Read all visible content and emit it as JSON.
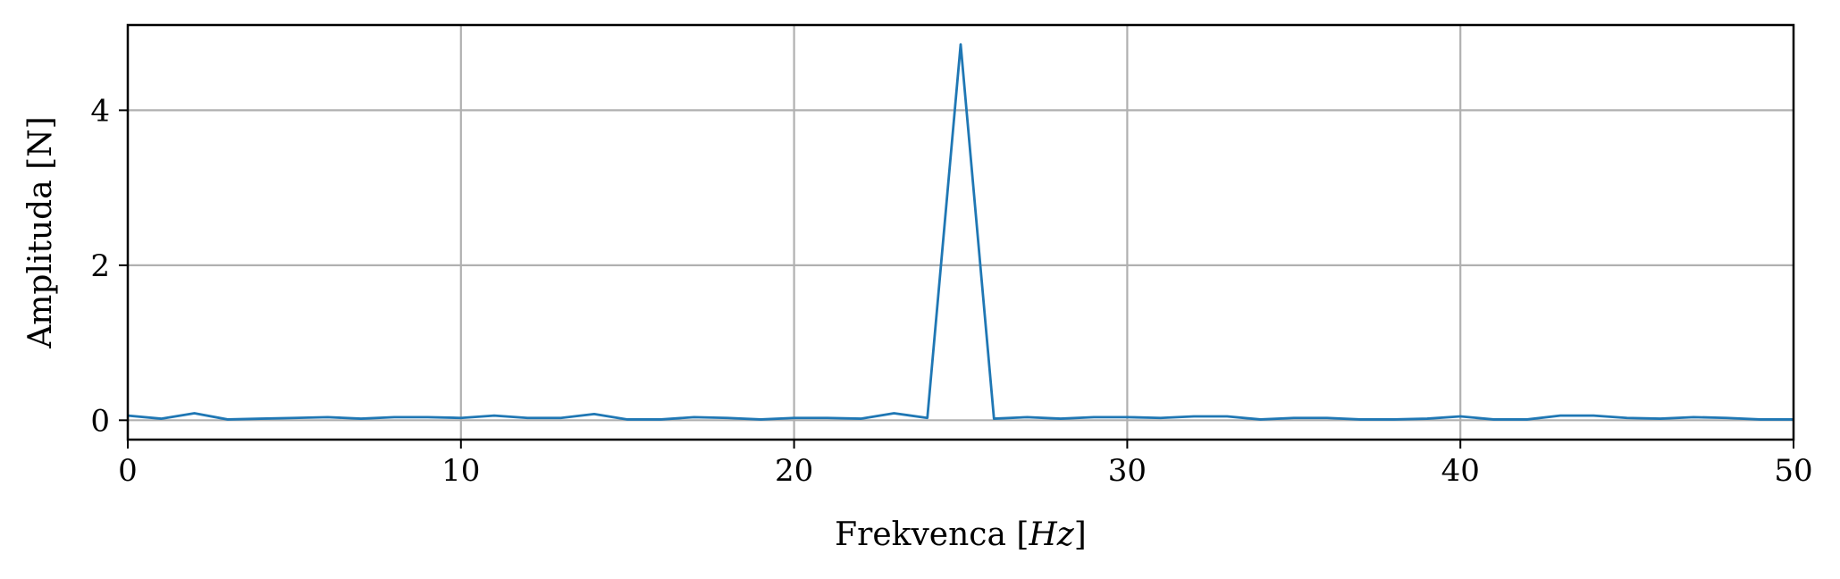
{
  "chart_data": {
    "type": "line",
    "xlabel": "Frekvenca [Hz]",
    "ylabel": "Amplituda [N]",
    "xlim": [
      0,
      50
    ],
    "ylim": [
      -0.25,
      5.1
    ],
    "grid": true,
    "xticks": [
      0,
      10,
      20,
      30,
      40,
      50
    ],
    "yticks": [
      0,
      2,
      4
    ],
    "line_color": "#1f77b4",
    "grid_color": "#b0b0b0",
    "series": [
      {
        "x": [
          0,
          1,
          2,
          3,
          4,
          5,
          6,
          7,
          8,
          9,
          10,
          11,
          12,
          13,
          14,
          15,
          16,
          17,
          18,
          19,
          20,
          21,
          22,
          23,
          24,
          25,
          26,
          27,
          28,
          29,
          30,
          31,
          32,
          33,
          34,
          35,
          36,
          37,
          38,
          39,
          40,
          41,
          42,
          43,
          44,
          45,
          46,
          47,
          48,
          49,
          50
        ],
        "values": [
          0.06,
          0.02,
          0.09,
          0.01,
          0.02,
          0.03,
          0.04,
          0.02,
          0.04,
          0.04,
          0.03,
          0.06,
          0.03,
          0.03,
          0.08,
          0.01,
          0.01,
          0.04,
          0.03,
          0.01,
          0.03,
          0.03,
          0.02,
          0.09,
          0.03,
          4.85,
          0.02,
          0.04,
          0.02,
          0.04,
          0.04,
          0.03,
          0.05,
          0.05,
          0.01,
          0.03,
          0.03,
          0.01,
          0.01,
          0.02,
          0.05,
          0.01,
          0.01,
          0.06,
          0.06,
          0.03,
          0.02,
          0.04,
          0.03,
          0.01,
          0.01
        ]
      }
    ]
  }
}
